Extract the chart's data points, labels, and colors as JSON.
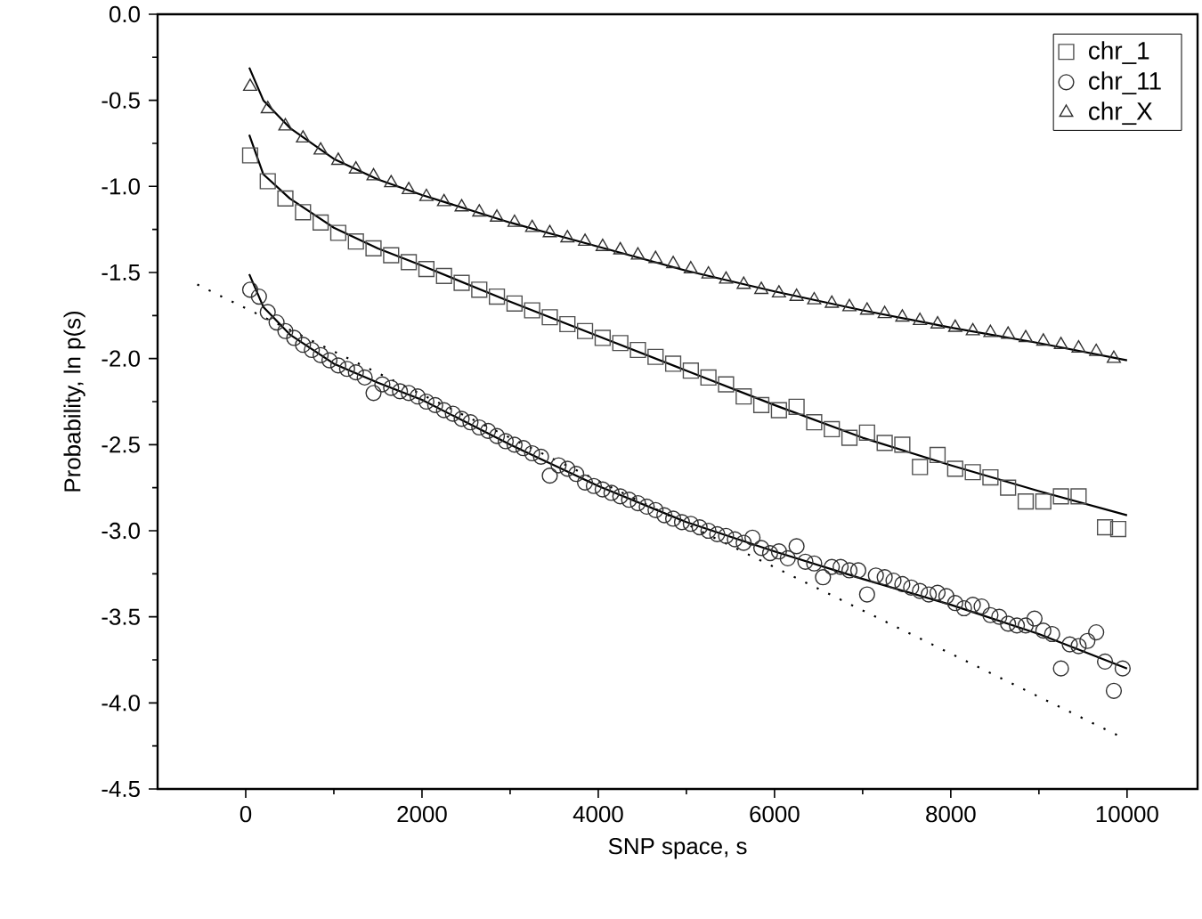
{
  "chart_data": {
    "type": "scatter",
    "xlabel": "SNP space, s",
    "ylabel": "Probability, ln p(s)",
    "xlim": [
      -1000,
      10800
    ],
    "ylim": [
      -4.5,
      0
    ],
    "xticks": [
      0,
      2000,
      4000,
      6000,
      8000,
      10000
    ],
    "yticks": [
      -4.5,
      {
        "value": -4,
        "label": "-4.0"
      },
      -3.5,
      {
        "value": -3,
        "label": "-3.0"
      },
      -2.5,
      {
        "value": -2,
        "label": "-2.0"
      },
      -1.5,
      {
        "value": -1,
        "label": "-1.0"
      },
      -0.5,
      {
        "value": 0,
        "label": "0.0"
      }
    ],
    "legend": "top right",
    "series": [
      {
        "name": "chr_1",
        "marker": "square",
        "color": "#505050",
        "x": [
          50,
          250,
          450,
          650,
          850,
          1050,
          1250,
          1450,
          1650,
          1850,
          2050,
          2250,
          2450,
          2650,
          2850,
          3050,
          3250,
          3450,
          3650,
          3850,
          4050,
          4250,
          4450,
          4650,
          4850,
          5050,
          5250,
          5450,
          5650,
          5850,
          6050,
          6250,
          6450,
          6650,
          6850,
          7050,
          7250,
          7450,
          7650,
          7850,
          8050,
          8250,
          8450,
          8650,
          8850,
          9050,
          9250,
          9450,
          9750,
          9900
        ],
        "values": [
          -0.82,
          -0.97,
          -1.07,
          -1.15,
          -1.21,
          -1.27,
          -1.32,
          -1.36,
          -1.4,
          -1.44,
          -1.48,
          -1.52,
          -1.56,
          -1.6,
          -1.64,
          -1.68,
          -1.72,
          -1.76,
          -1.8,
          -1.84,
          -1.88,
          -1.91,
          -1.95,
          -1.99,
          -2.03,
          -2.07,
          -2.11,
          -2.15,
          -2.22,
          -2.27,
          -2.3,
          -2.28,
          -2.37,
          -2.41,
          -2.46,
          -2.43,
          -2.49,
          -2.5,
          -2.63,
          -2.56,
          -2.64,
          -2.66,
          -2.69,
          -2.75,
          -2.83,
          -2.83,
          -2.8,
          -2.8,
          -2.98,
          -2.99
        ]
      },
      {
        "name": "chr_11",
        "marker": "circle",
        "color": "#303030",
        "x": [
          50,
          150,
          250,
          350,
          450,
          550,
          650,
          750,
          850,
          950,
          1050,
          1150,
          1250,
          1350,
          1450,
          1550,
          1650,
          1750,
          1850,
          1950,
          2050,
          2150,
          2250,
          2350,
          2450,
          2550,
          2650,
          2750,
          2850,
          2950,
          3050,
          3150,
          3250,
          3350,
          3450,
          3550,
          3650,
          3750,
          3850,
          3950,
          4050,
          4150,
          4250,
          4350,
          4450,
          4550,
          4650,
          4750,
          4850,
          4950,
          5050,
          5150,
          5250,
          5350,
          5450,
          5550,
          5650,
          5750,
          5850,
          5950,
          6050,
          6150,
          6250,
          6350,
          6450,
          6550,
          6650,
          6750,
          6850,
          6950,
          7050,
          7150,
          7250,
          7350,
          7450,
          7550,
          7650,
          7750,
          7850,
          7950,
          8050,
          8150,
          8250,
          8350,
          8450,
          8550,
          8650,
          8750,
          8850,
          8950,
          9050,
          9150,
          9250,
          9350,
          9450,
          9550,
          9650,
          9750,
          9850,
          9950
        ],
        "values": [
          -1.6,
          -1.64,
          -1.73,
          -1.79,
          -1.84,
          -1.88,
          -1.92,
          -1.95,
          -1.98,
          -2.01,
          -2.04,
          -2.06,
          -2.08,
          -2.11,
          -2.2,
          -2.15,
          -2.17,
          -2.19,
          -2.2,
          -2.22,
          -2.25,
          -2.27,
          -2.3,
          -2.32,
          -2.35,
          -2.37,
          -2.4,
          -2.42,
          -2.45,
          -2.48,
          -2.5,
          -2.52,
          -2.55,
          -2.57,
          -2.68,
          -2.62,
          -2.64,
          -2.67,
          -2.72,
          -2.74,
          -2.76,
          -2.78,
          -2.8,
          -2.82,
          -2.84,
          -2.86,
          -2.88,
          -2.91,
          -2.93,
          -2.95,
          -2.96,
          -2.98,
          -3.0,
          -3.02,
          -3.03,
          -3.05,
          -3.07,
          -3.04,
          -3.1,
          -3.13,
          -3.12,
          -3.16,
          -3.09,
          -3.18,
          -3.19,
          -3.27,
          -3.21,
          -3.21,
          -3.23,
          -3.23,
          -3.37,
          -3.26,
          -3.27,
          -3.29,
          -3.31,
          -3.33,
          -3.35,
          -3.37,
          -3.36,
          -3.38,
          -3.42,
          -3.45,
          -3.43,
          -3.44,
          -3.49,
          -3.5,
          -3.54,
          -3.55,
          -3.55,
          -3.51,
          -3.58,
          -3.6,
          -3.8,
          -3.66,
          -3.67,
          -3.64,
          -3.59,
          -3.76,
          -3.93,
          -3.8
        ]
      },
      {
        "name": "chr_X",
        "marker": "triangle",
        "color": "#303030",
        "x": [
          50,
          250,
          450,
          650,
          850,
          1050,
          1250,
          1450,
          1650,
          1850,
          2050,
          2250,
          2450,
          2650,
          2850,
          3050,
          3250,
          3450,
          3650,
          3850,
          4050,
          4250,
          4450,
          4650,
          4850,
          5050,
          5250,
          5450,
          5650,
          5850,
          6050,
          6250,
          6450,
          6650,
          6850,
          7050,
          7250,
          7450,
          7650,
          7850,
          8050,
          8250,
          8450,
          8650,
          8850,
          9050,
          9250,
          9450,
          9650,
          9850
        ],
        "values": [
          -0.42,
          -0.55,
          -0.65,
          -0.72,
          -0.79,
          -0.85,
          -0.9,
          -0.94,
          -0.98,
          -1.02,
          -1.06,
          -1.09,
          -1.12,
          -1.15,
          -1.18,
          -1.21,
          -1.24,
          -1.27,
          -1.3,
          -1.32,
          -1.35,
          -1.37,
          -1.4,
          -1.42,
          -1.45,
          -1.48,
          -1.51,
          -1.54,
          -1.57,
          -1.6,
          -1.62,
          -1.64,
          -1.66,
          -1.68,
          -1.7,
          -1.72,
          -1.74,
          -1.76,
          -1.78,
          -1.8,
          -1.82,
          -1.84,
          -1.85,
          -1.86,
          -1.88,
          -1.9,
          -1.92,
          -1.94,
          -1.96,
          -2.0
        ]
      },
      {
        "type": "line",
        "line_style": "solid",
        "color": "#000000",
        "x": [
          40,
          200,
          500,
          1000,
          1500,
          2000,
          3000,
          4000,
          5000,
          6000,
          7000,
          8000,
          9000,
          10000
        ],
        "values": [
          -0.7,
          -0.93,
          -1.07,
          -1.24,
          -1.36,
          -1.46,
          -1.67,
          -1.87,
          -2.07,
          -2.27,
          -2.46,
          -2.62,
          -2.77,
          -2.91
        ]
      },
      {
        "type": "line",
        "line_style": "solid",
        "color": "#000000",
        "x": [
          40,
          200,
          500,
          1000,
          1500,
          2000,
          3000,
          4000,
          5000,
          6000,
          7000,
          8000,
          9000,
          10000
        ],
        "values": [
          -1.51,
          -1.7,
          -1.86,
          -2.03,
          -2.14,
          -2.24,
          -2.5,
          -2.74,
          -2.95,
          -3.12,
          -3.28,
          -3.43,
          -3.6,
          -3.8
        ]
      },
      {
        "type": "line",
        "line_style": "solid",
        "color": "#000000",
        "x": [
          40,
          200,
          500,
          1000,
          1500,
          2000,
          3000,
          4000,
          5000,
          6000,
          7000,
          8000,
          9000,
          10000
        ],
        "values": [
          -0.31,
          -0.5,
          -0.66,
          -0.84,
          -0.96,
          -1.05,
          -1.21,
          -1.35,
          -1.49,
          -1.61,
          -1.72,
          -1.82,
          -1.91,
          -2.01
        ]
      },
      {
        "type": "line",
        "line_style": "dotted",
        "color": "#000000",
        "x": [
          -550,
          9900
        ],
        "values": [
          -1.57,
          -4.19
        ]
      }
    ]
  }
}
